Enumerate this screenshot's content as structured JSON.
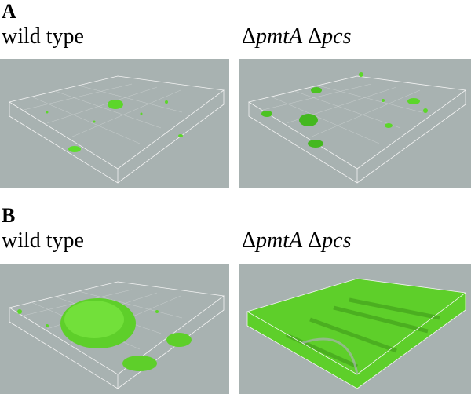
{
  "panels": [
    {
      "label": "A",
      "left_title": "wild type",
      "right_title": [
        "Δ",
        "pmtA",
        "Δ",
        "pcs"
      ]
    },
    {
      "label": "B",
      "left_title": "wild type",
      "right_title": [
        "Δ",
        "pmtA",
        "Δ",
        "pcs"
      ]
    }
  ]
}
